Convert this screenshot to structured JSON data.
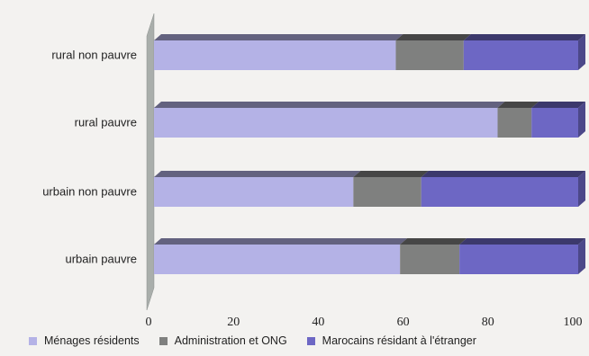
{
  "chart_data": {
    "type": "bar",
    "orientation": "horizontal",
    "stacked": true,
    "three_d": true,
    "categories": [
      "rural non pauvre",
      "rural pauvre",
      "urbain non pauvre",
      "urbain pauvre"
    ],
    "series": [
      {
        "name": "Ménages résidents",
        "values": [
          57,
          81,
          47,
          58
        ],
        "color": "#b4b2e6"
      },
      {
        "name": "Administration et ONG",
        "values": [
          16,
          8,
          16,
          14
        ],
        "color": "#7f807f"
      },
      {
        "name": "Marocains résidant à l'étranger",
        "values": [
          27,
          11,
          37,
          28
        ],
        "color": "#6d67c4"
      }
    ],
    "x_ticks": [
      "0",
      "20",
      "40",
      "60",
      "80",
      "100"
    ],
    "xlim": [
      0,
      100
    ],
    "legend_position": "bottom",
    "grid": false
  }
}
